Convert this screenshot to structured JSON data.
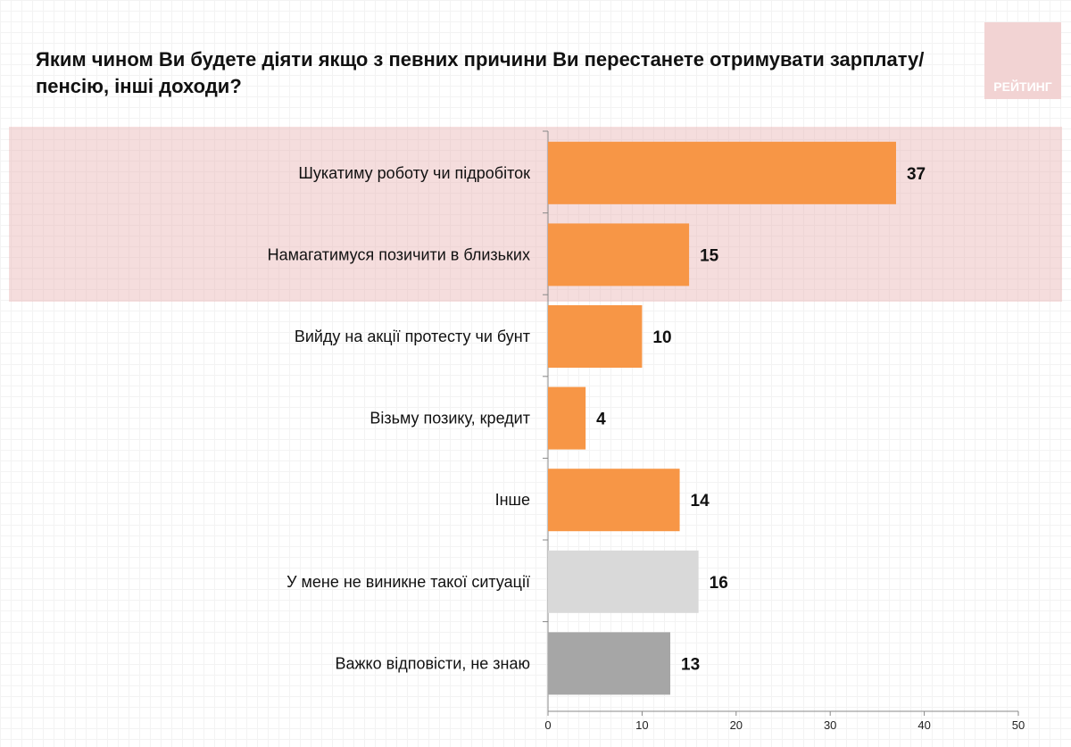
{
  "title": "Яким чином Ви будете діяти якщо з певних причини Ви перестанете отримувати зарплату/пенсію, інші доходи?",
  "logo_text": "РЕЙТИНГ",
  "colors": {
    "main": "#f79646",
    "no_situation": "#d9d9d9",
    "dont_know": "#a6a6a6",
    "highlight": "#f0d0d0",
    "logo": "#f2d3d3"
  },
  "chart_data": {
    "type": "bar",
    "orientation": "horizontal",
    "title": "Яким чином Ви будете діяти якщо з певних причини Ви перестанете отримувати зарплату/пенсію, інші доходи?",
    "categories": [
      "Шукатиму роботу чи підробіток",
      "Намагатимуся позичити в близьких",
      "Вийду на акції протесту чи бунт",
      "Візьму позику, кредит",
      "Інше",
      "У мене не виникне такої ситуації",
      "Важко відповісти, не знаю"
    ],
    "values": [
      37,
      15,
      10,
      4,
      14,
      16,
      13
    ],
    "bar_colors": [
      "#f79646",
      "#f79646",
      "#f79646",
      "#f79646",
      "#f79646",
      "#d9d9d9",
      "#a6a6a6"
    ],
    "highlighted_categories": [
      "Шукатиму роботу чи підробіток",
      "Намагатимуся позичити в близьких"
    ],
    "xlim": [
      0,
      50
    ],
    "xticks": [
      "0",
      "10",
      "20",
      "30",
      "40",
      "50"
    ],
    "grid": false
  }
}
